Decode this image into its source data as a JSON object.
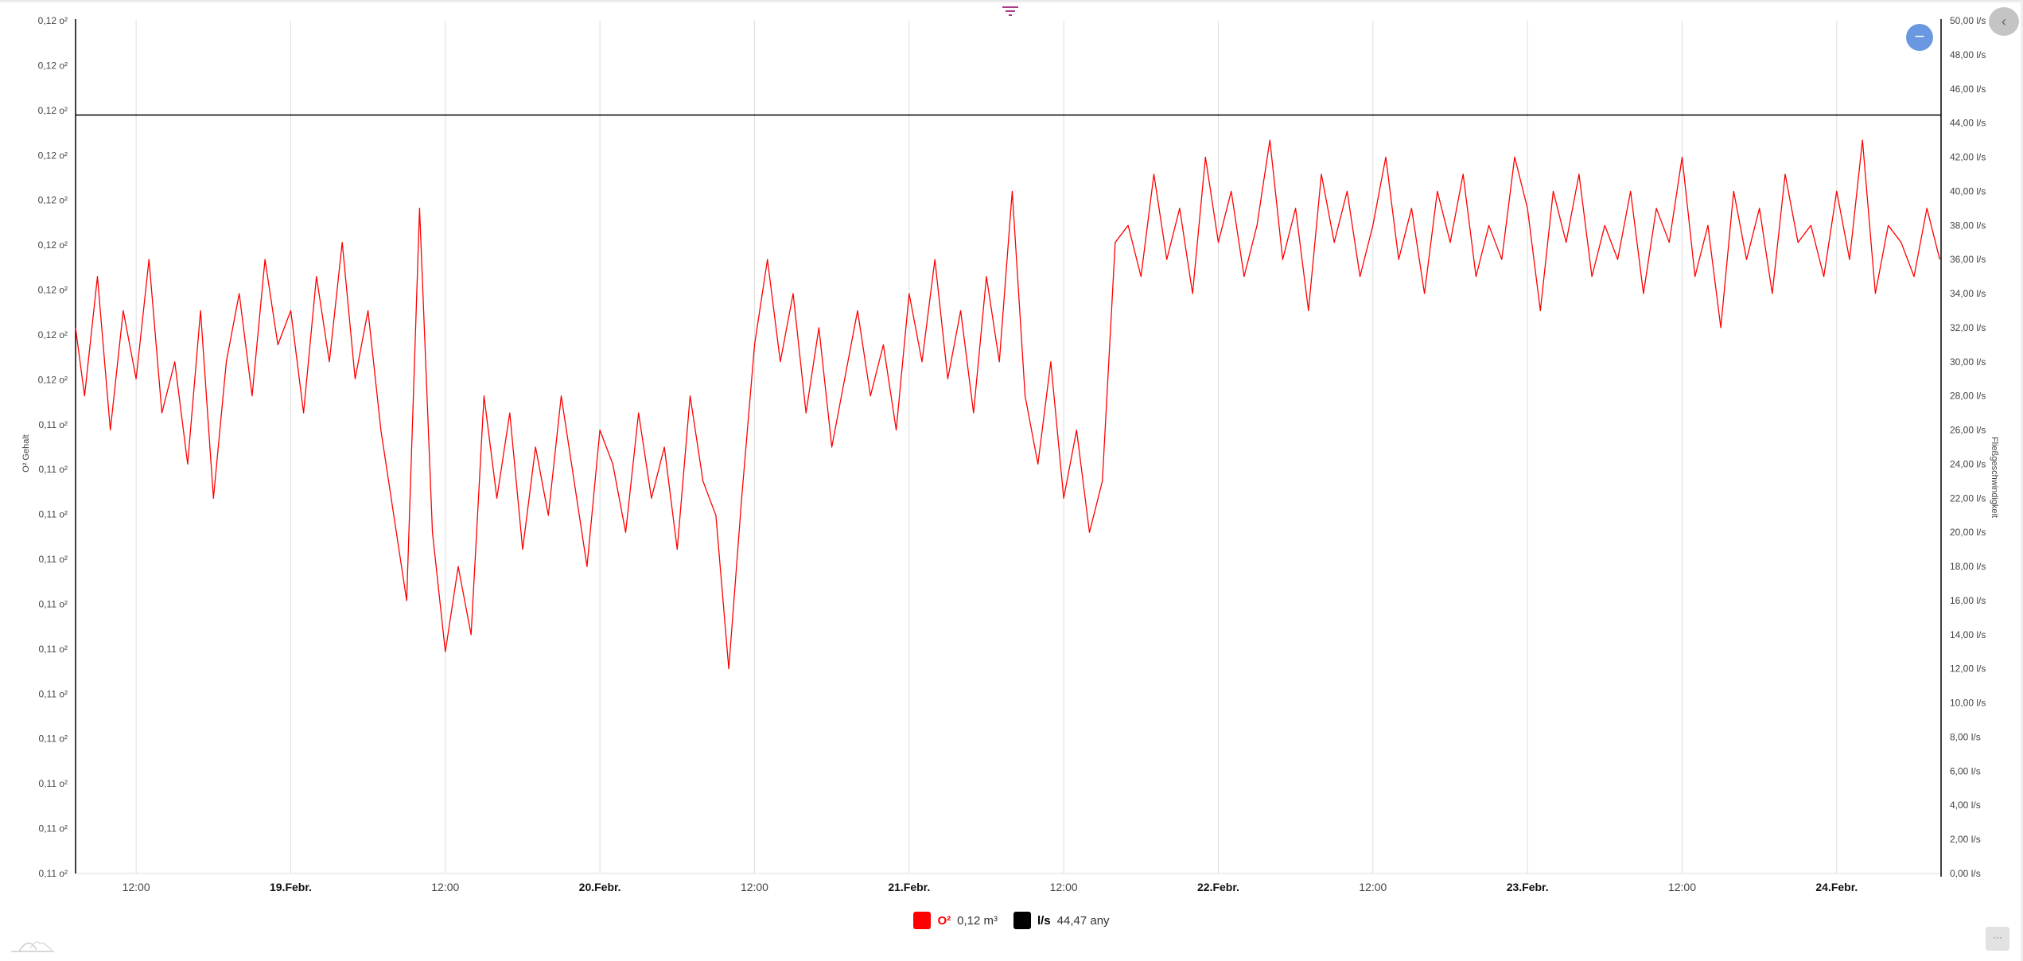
{
  "colors": {
    "o2": "#ff0000",
    "flow": "#000000",
    "grid": "#dddddd",
    "zoom_button": "#6a98e0",
    "filter_icon": "#a83c8a"
  },
  "icons": {
    "filter": "filter-icon",
    "zoom": "minus-icon",
    "side": "chevron-left-icon",
    "more": "ellipsis-icon",
    "logo": "mountains-logo"
  },
  "buttons": {
    "zoom": "−",
    "side": "‹",
    "more": "···"
  },
  "legend": [
    {
      "name": "O²",
      "value": "0,12 m³",
      "color": "#ff0000"
    },
    {
      "name": "l/s",
      "value": "44,47 any",
      "color": "#000000"
    }
  ],
  "chart_data": {
    "type": "line",
    "x_start": "18.Febr. 07:00",
    "x_interval": "1 h",
    "x_range": [
      "18.Febr. 07:18",
      "24.Febr. 08:06"
    ],
    "x_tick_labels": [
      "12:00",
      "19.Febr.",
      "12:00",
      "20.Febr.",
      "12:00",
      "21.Febr.",
      "12:00",
      "22.Febr.",
      "12:00",
      "23.Febr.",
      "12:00",
      "24.Febr."
    ],
    "x_tick_bold": [
      false,
      true,
      false,
      true,
      false,
      true,
      false,
      true,
      false,
      true,
      false,
      true
    ],
    "grid": "vertical",
    "y_left": {
      "label": "O² Gehalt",
      "ylim": [
        0.11,
        0.1185
      ],
      "tick_labels": [
        "0,12 o²",
        "0,12 o²",
        "0,12 o²",
        "0,12 o²",
        "0,12 o²",
        "0,12 o²",
        "0,12 o²",
        "0,12 o²",
        "0,12 o²",
        "0,11 o²",
        "0,11 o²",
        "0,11 o²",
        "0,11 o²",
        "0,11 o²",
        "0,11 o²",
        "0,11 o²",
        "0,11 o²",
        "0,11 o²",
        "0,11 o²",
        "0,11 o²"
      ]
    },
    "y_right": {
      "label": "Fließgeschwindigkeit",
      "ylim": [
        0,
        50
      ],
      "tick_labels": [
        "50,00 l/s",
        "48,00 l/s",
        "46,00 l/s",
        "44,00 l/s",
        "42,00 l/s",
        "40,00 l/s",
        "38,00 l/s",
        "36,00 l/s",
        "34,00 l/s",
        "32,00 l/s",
        "30,00 l/s",
        "28,00 l/s",
        "26,00 l/s",
        "24,00 l/s",
        "22,00 l/s",
        "20,00 l/s",
        "18,00 l/s",
        "16,00 l/s",
        "14,00 l/s",
        "12,00 l/s",
        "10,00 l/s",
        "8,00 l/s",
        "6,00 l/s",
        "4,00 l/s",
        "2,00 l/s",
        "0,00 l/s"
      ]
    },
    "series": [
      {
        "name": "O²",
        "axis": "left",
        "color": "#ff0000",
        "values": [
          0.11544,
          0.11476,
          0.11595,
          0.11442,
          0.11561,
          0.11493,
          0.11612,
          0.11459,
          0.1151,
          0.11408,
          0.11561,
          0.11374,
          0.1151,
          0.11578,
          0.11476,
          0.11612,
          0.11527,
          0.11561,
          0.11459,
          0.11595,
          0.1151,
          0.11629,
          0.11493,
          0.11561,
          0.11442,
          0.11357,
          0.11272,
          0.11663,
          0.1134,
          0.11221,
          0.11306,
          0.11238,
          0.11476,
          0.11374,
          0.11459,
          0.11323,
          0.11425,
          0.11357,
          0.11476,
          0.11391,
          0.11306,
          0.11442,
          0.11408,
          0.1134,
          0.11459,
          0.11374,
          0.11425,
          0.11323,
          0.11476,
          0.11391,
          0.11357,
          0.11204,
          0.11374,
          0.11527,
          0.11612,
          0.1151,
          0.11578,
          0.11459,
          0.11544,
          0.11425,
          0.11493,
          0.11561,
          0.11476,
          0.11527,
          0.11442,
          0.11578,
          0.1151,
          0.11612,
          0.11493,
          0.11561,
          0.11459,
          0.11595,
          0.1151,
          0.1168,
          0.11476,
          0.11408,
          0.1151,
          0.11374,
          0.11442,
          0.1134,
          0.11391,
          0.11629,
          0.11646,
          0.11595,
          0.11697,
          0.11612,
          0.11663,
          0.11578,
          0.11714,
          0.11629,
          0.1168,
          0.11595,
          0.11646,
          0.11731,
          0.11612,
          0.11663,
          0.11561,
          0.11697,
          0.11629,
          0.1168,
          0.11595,
          0.11646,
          0.11714,
          0.11612,
          0.11663,
          0.11578,
          0.1168,
          0.11629,
          0.11697,
          0.11595,
          0.11646,
          0.11612,
          0.11714,
          0.11663,
          0.11561,
          0.1168,
          0.11629,
          0.11697,
          0.11595,
          0.11646,
          0.11612,
          0.1168,
          0.11578,
          0.11663,
          0.11629,
          0.11714,
          0.11595,
          0.11646,
          0.11544,
          0.1168,
          0.11612,
          0.11663,
          0.11578,
          0.11697,
          0.11629,
          0.11646,
          0.11595,
          0.1168,
          0.11612,
          0.11731,
          0.11578,
          0.11646,
          0.11629,
          0.11595,
          0.11663,
          0.11612
        ]
      },
      {
        "name": "l/s",
        "axis": "right",
        "color": "#000000",
        "values": [
          44.47,
          44.47
        ]
      }
    ]
  }
}
